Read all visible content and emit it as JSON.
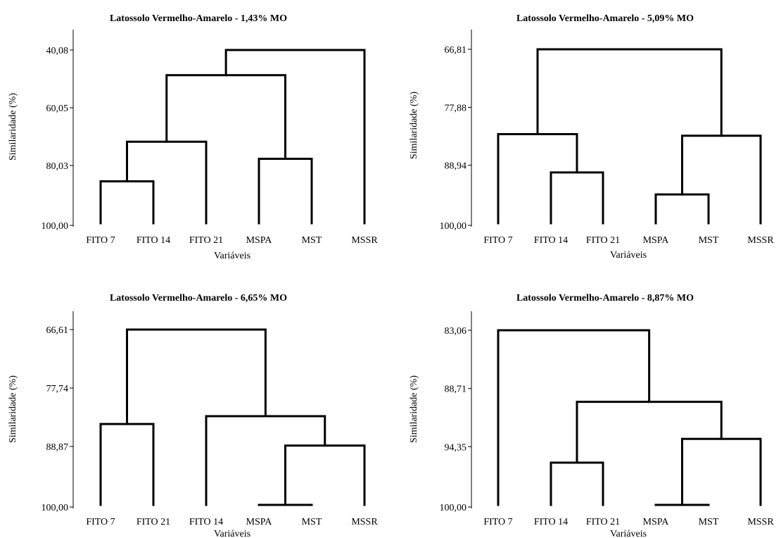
{
  "chart_data": [
    {
      "type": "dendrogram",
      "title": "Latossolo Vermelho-Amarelo - 1,43% MO",
      "xlabel": "Variáveis",
      "ylabel": "Similaridade (%)",
      "yticks": [
        "40,08",
        "60,05",
        "80,03",
        "100,00"
      ],
      "ylim": [
        40.08,
        100.0
      ],
      "leaves": [
        "FITO 7",
        "FITO 14",
        "FITO 21",
        "MSPA",
        "MST",
        "MSSR"
      ],
      "merges": [
        {
          "left": "FITO 7",
          "right": "FITO 14",
          "similarity": 85.5
        },
        {
          "left": "cluster 1",
          "right": "FITO 21",
          "similarity": 71.8
        },
        {
          "left": "MSPA",
          "right": "MST",
          "similarity": 77.7
        },
        {
          "left": "cluster 2",
          "right": "cluster 3",
          "similarity": 48.8
        },
        {
          "left": "cluster 4",
          "right": "MSSR",
          "similarity": 40.08
        }
      ]
    },
    {
      "type": "dendrogram",
      "title": "Latossolo Vermelho-Amarelo - 5,09% MO",
      "xlabel": "Variáveis",
      "ylabel": "Similaridade (%)",
      "yticks": [
        "66,81",
        "77,88",
        "88,94",
        "100,00"
      ],
      "ylim": [
        66.81,
        100.0
      ],
      "leaves": [
        "FITO 7",
        "FITO 14",
        "FITO 21",
        "MSPA",
        "MST",
        "MSSR"
      ],
      "merges": [
        {
          "left": "FITO 14",
          "right": "FITO 21",
          "similarity": 90.3
        },
        {
          "left": "FITO 7",
          "right": "cluster 1",
          "similarity": 83.0
        },
        {
          "left": "MSPA",
          "right": "MST",
          "similarity": 94.5
        },
        {
          "left": "cluster 3",
          "right": "MSSR",
          "similarity": 83.3
        },
        {
          "left": "cluster 2",
          "right": "cluster 4",
          "similarity": 66.81
        }
      ]
    },
    {
      "type": "dendrogram",
      "title": "Latossolo Vermelho-Amarelo - 6,65% MO",
      "xlabel": "Variáveis",
      "ylabel": "Similaridade (%)",
      "yticks": [
        "66,61",
        "77,74",
        "88,87",
        "100,00"
      ],
      "ylim": [
        66.61,
        100.0
      ],
      "leaves": [
        "FITO 7",
        "FITO 21",
        "FITO 14",
        "MSPA",
        "MST",
        "MSSR"
      ],
      "merges": [
        {
          "left": "FITO 7",
          "right": "FITO 21",
          "similarity": 84.6
        },
        {
          "left": "MSPA",
          "right": "MST",
          "similarity": 100.0
        },
        {
          "left": "cluster 2",
          "right": "MSSR",
          "similarity": 88.7
        },
        {
          "left": "FITO 14",
          "right": "cluster 3",
          "similarity": 83.1
        },
        {
          "left": "cluster 1",
          "right": "cluster 4",
          "similarity": 66.61
        }
      ]
    },
    {
      "type": "dendrogram",
      "title": "Latossolo Vermelho-Amarelo - 8,87% MO",
      "xlabel": "Variáveis",
      "ylabel": "Similaridade (%)",
      "yticks": [
        "83,06",
        "88,71",
        "94,35",
        "100,00"
      ],
      "ylim": [
        83.06,
        100.0
      ],
      "leaves": [
        "FITO 7",
        "FITO 14",
        "FITO 21",
        "MSPA",
        "MST",
        "MSSR"
      ],
      "merges": [
        {
          "left": "FITO 14",
          "right": "FITO 21",
          "similarity": 95.9
        },
        {
          "left": "MSPA",
          "right": "MST",
          "similarity": 100.0
        },
        {
          "left": "cluster 2",
          "right": "MSSR",
          "similarity": 93.6
        },
        {
          "left": "cluster 1",
          "right": "cluster 3",
          "similarity": 90.0
        },
        {
          "left": "FITO 7",
          "right": "cluster 4",
          "similarity": 83.06
        }
      ]
    }
  ]
}
